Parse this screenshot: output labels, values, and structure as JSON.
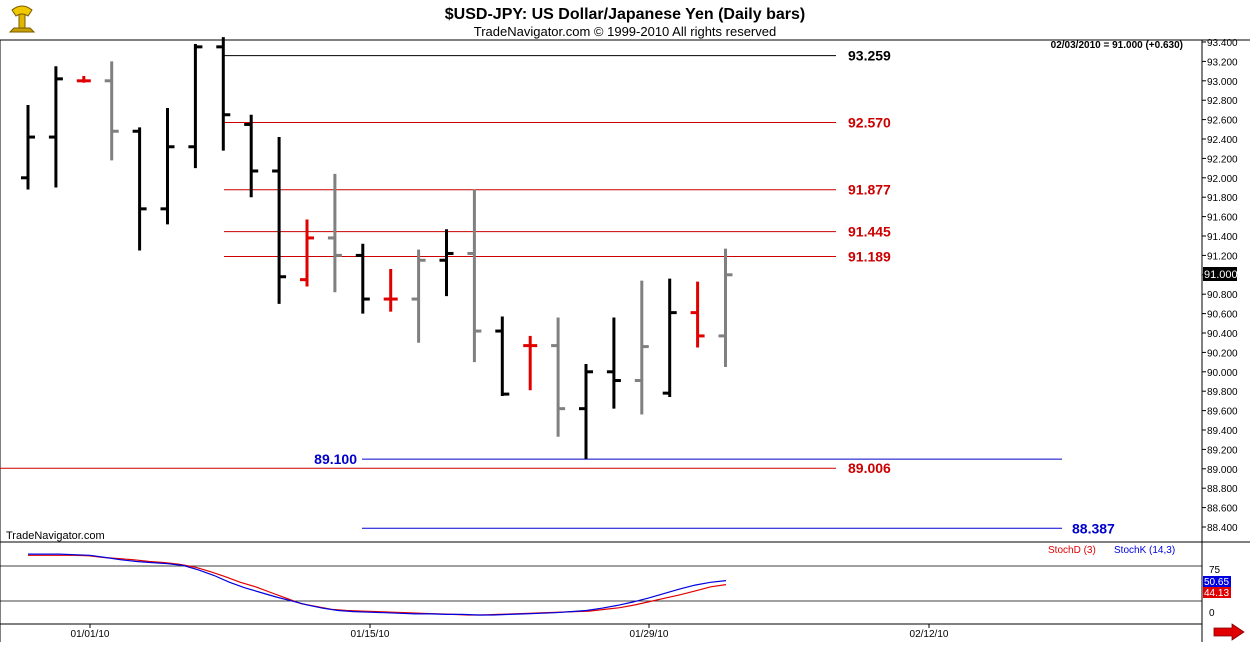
{
  "header": {
    "title": "$USD-JPY:  US Dollar/Japanese Yen  (Daily bars)",
    "subtitle": "TradeNavigator.com © 1999-2010 All rights reserved",
    "logo_icon": "trophy-icon"
  },
  "readout": "02/03/2010 = 91.000 (+0.630)",
  "watermark": "TradeNavigator.com",
  "current_price": "91.000",
  "indicator": {
    "stoch_d_label": "StochD (3)",
    "stoch_k_label": "StochK (14,3)",
    "stoch_d_value": "44.13",
    "stoch_k_value": "50.65",
    "level_75": "75",
    "level_0": "0",
    "color_d": "#e00000",
    "color_k": "#0000e0"
  },
  "colors": {
    "up_bar": "#000000",
    "down_bar": "#808080",
    "highlight_bar": "#e00000",
    "red_level": "#cc0000",
    "blue_level": "#0000cc",
    "black_level": "#000000"
  },
  "chart_data": {
    "type": "ohlc",
    "y_ticks": [
      "93.400",
      "93.200",
      "93.000",
      "92.800",
      "92.600",
      "92.400",
      "92.200",
      "92.000",
      "91.800",
      "91.600",
      "91.400",
      "91.200",
      "91.000",
      "90.800",
      "90.600",
      "90.400",
      "90.200",
      "90.000",
      "89.800",
      "89.600",
      "89.400",
      "89.200",
      "89.000",
      "88.800",
      "88.600",
      "88.400"
    ],
    "x_ticks": [
      "01/01/10",
      "01/15/10",
      "01/29/10",
      "02/12/10"
    ],
    "ylim": [
      88.3,
      93.45
    ],
    "levels": [
      {
        "label": "93.259",
        "value": 93.259,
        "color": "black"
      },
      {
        "label": "92.570",
        "value": 92.57,
        "color": "red"
      },
      {
        "label": "91.877",
        "value": 91.877,
        "color": "red"
      },
      {
        "label": "91.445",
        "value": 91.445,
        "color": "red"
      },
      {
        "label": "91.189",
        "value": 91.189,
        "color": "red"
      },
      {
        "label": "89.100",
        "value": 89.1,
        "color": "blue"
      },
      {
        "label": "89.006",
        "value": 89.006,
        "color": "red"
      },
      {
        "label": "88.387",
        "value": 88.387,
        "color": "blue"
      }
    ],
    "bars": [
      {
        "o": 92.0,
        "h": 92.75,
        "l": 91.88,
        "c": 92.42,
        "color": "up"
      },
      {
        "o": 92.42,
        "h": 93.15,
        "l": 91.9,
        "c": 93.02,
        "color": "up"
      },
      {
        "o": 93.0,
        "h": 93.05,
        "l": 92.98,
        "c": 93.0,
        "color": "red"
      },
      {
        "o": 93.0,
        "h": 93.2,
        "l": 92.18,
        "c": 92.48,
        "color": "down"
      },
      {
        "o": 92.48,
        "h": 92.52,
        "l": 91.25,
        "c": 91.68,
        "color": "up"
      },
      {
        "o": 91.68,
        "h": 92.72,
        "l": 91.52,
        "c": 92.32,
        "color": "up"
      },
      {
        "o": 92.32,
        "h": 93.38,
        "l": 92.1,
        "c": 93.35,
        "color": "up"
      },
      {
        "o": 93.35,
        "h": 93.45,
        "l": 92.28,
        "c": 92.65,
        "color": "up"
      },
      {
        "o": 92.55,
        "h": 92.65,
        "l": 91.8,
        "c": 92.07,
        "color": "up"
      },
      {
        "o": 92.07,
        "h": 92.42,
        "l": 90.7,
        "c": 90.98,
        "color": "up"
      },
      {
        "o": 90.95,
        "h": 91.57,
        "l": 90.88,
        "c": 91.38,
        "color": "red"
      },
      {
        "o": 91.38,
        "h": 92.04,
        "l": 90.82,
        "c": 91.2,
        "color": "down"
      },
      {
        "o": 91.2,
        "h": 91.32,
        "l": 90.6,
        "c": 90.75,
        "color": "up"
      },
      {
        "o": 90.75,
        "h": 91.06,
        "l": 90.62,
        "c": 90.75,
        "color": "red"
      },
      {
        "o": 90.75,
        "h": 91.26,
        "l": 90.3,
        "c": 91.15,
        "color": "down"
      },
      {
        "o": 91.15,
        "h": 91.47,
        "l": 90.78,
        "c": 91.22,
        "color": "up"
      },
      {
        "o": 91.22,
        "h": 91.88,
        "l": 90.1,
        "c": 90.42,
        "color": "down"
      },
      {
        "o": 90.42,
        "h": 90.57,
        "l": 89.75,
        "c": 89.77,
        "color": "up"
      },
      {
        "o": 90.27,
        "h": 90.37,
        "l": 89.81,
        "c": 90.27,
        "color": "red"
      },
      {
        "o": 90.27,
        "h": 90.56,
        "l": 89.33,
        "c": 89.62,
        "color": "down"
      },
      {
        "o": 89.62,
        "h": 90.08,
        "l": 89.1,
        "c": 90.0,
        "color": "up"
      },
      {
        "o": 90.0,
        "h": 90.56,
        "l": 89.62,
        "c": 89.91,
        "color": "up"
      },
      {
        "o": 89.91,
        "h": 90.94,
        "l": 89.56,
        "c": 90.26,
        "color": "down"
      },
      {
        "o": 89.78,
        "h": 90.96,
        "l": 89.74,
        "c": 90.61,
        "color": "up"
      },
      {
        "o": 90.61,
        "h": 90.93,
        "l": 90.25,
        "c": 90.37,
        "color": "red"
      },
      {
        "o": 90.37,
        "h": 91.27,
        "l": 90.05,
        "c": 91.0,
        "color": "down"
      }
    ],
    "stochastic": {
      "ylim": [
        -10,
        100
      ],
      "d": [
        96,
        96,
        96,
        96,
        95,
        92,
        90,
        88,
        85,
        83,
        80,
        75,
        67,
        58,
        48,
        40,
        30,
        20,
        10,
        5,
        0,
        -2,
        -3,
        -4,
        -5,
        -6,
        -7,
        -8,
        -9,
        -10,
        -10,
        -9,
        -8,
        -7,
        -6,
        -5,
        -4,
        -3,
        0,
        3,
        8,
        14,
        20,
        26,
        33,
        40,
        44
      ],
      "k": [
        98,
        98,
        98,
        97,
        96,
        92,
        88,
        85,
        83,
        81,
        78,
        70,
        60,
        48,
        38,
        30,
        22,
        15,
        8,
        2,
        -2,
        -4,
        -5,
        -6,
        -7,
        -8,
        -8,
        -9,
        -9,
        -10,
        -10,
        -9,
        -8,
        -7,
        -6,
        -4,
        -2,
        2,
        7,
        13,
        20,
        28,
        36,
        43,
        48,
        51
      ]
    }
  }
}
